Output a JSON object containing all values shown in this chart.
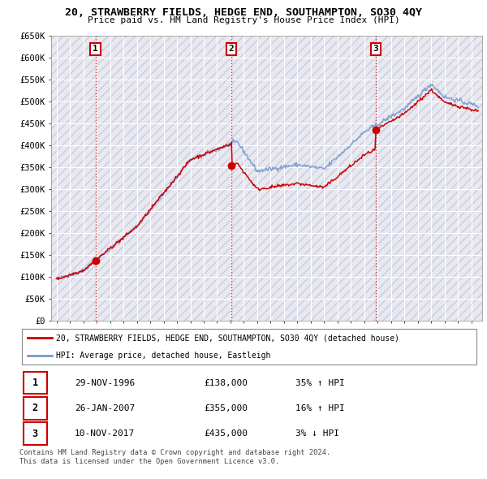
{
  "title": "20, STRAWBERRY FIELDS, HEDGE END, SOUTHAMPTON, SO30 4QY",
  "subtitle": "Price paid vs. HM Land Registry's House Price Index (HPI)",
  "ylim": [
    0,
    650000
  ],
  "yticks": [
    0,
    50000,
    100000,
    150000,
    200000,
    250000,
    300000,
    350000,
    400000,
    450000,
    500000,
    550000,
    600000,
    650000
  ],
  "sales": [
    {
      "date_num": 1996.91,
      "price": 138000,
      "label": "1",
      "pct": "35%",
      "dir": "↑",
      "date_str": "29-NOV-1996"
    },
    {
      "date_num": 2007.07,
      "price": 355000,
      "label": "2",
      "pct": "16%",
      "dir": "↑",
      "date_str": "26-JAN-2007"
    },
    {
      "date_num": 2017.86,
      "price": 435000,
      "label": "3",
      "pct": "3%",
      "dir": "↓",
      "date_str": "10-NOV-2017"
    }
  ],
  "legend_label_red": "20, STRAWBERRY FIELDS, HEDGE END, SOUTHAMPTON, SO30 4QY (detached house)",
  "legend_label_blue": "HPI: Average price, detached house, Eastleigh",
  "footnote": "Contains HM Land Registry data © Crown copyright and database right 2024.\nThis data is licensed under the Open Government Licence v3.0.",
  "plot_bg_color": "#e8e8f0",
  "grid_color": "#ffffff",
  "red_color": "#cc0000",
  "blue_color": "#7799cc",
  "xlim_left": 1993.6,
  "xlim_right": 2025.8
}
